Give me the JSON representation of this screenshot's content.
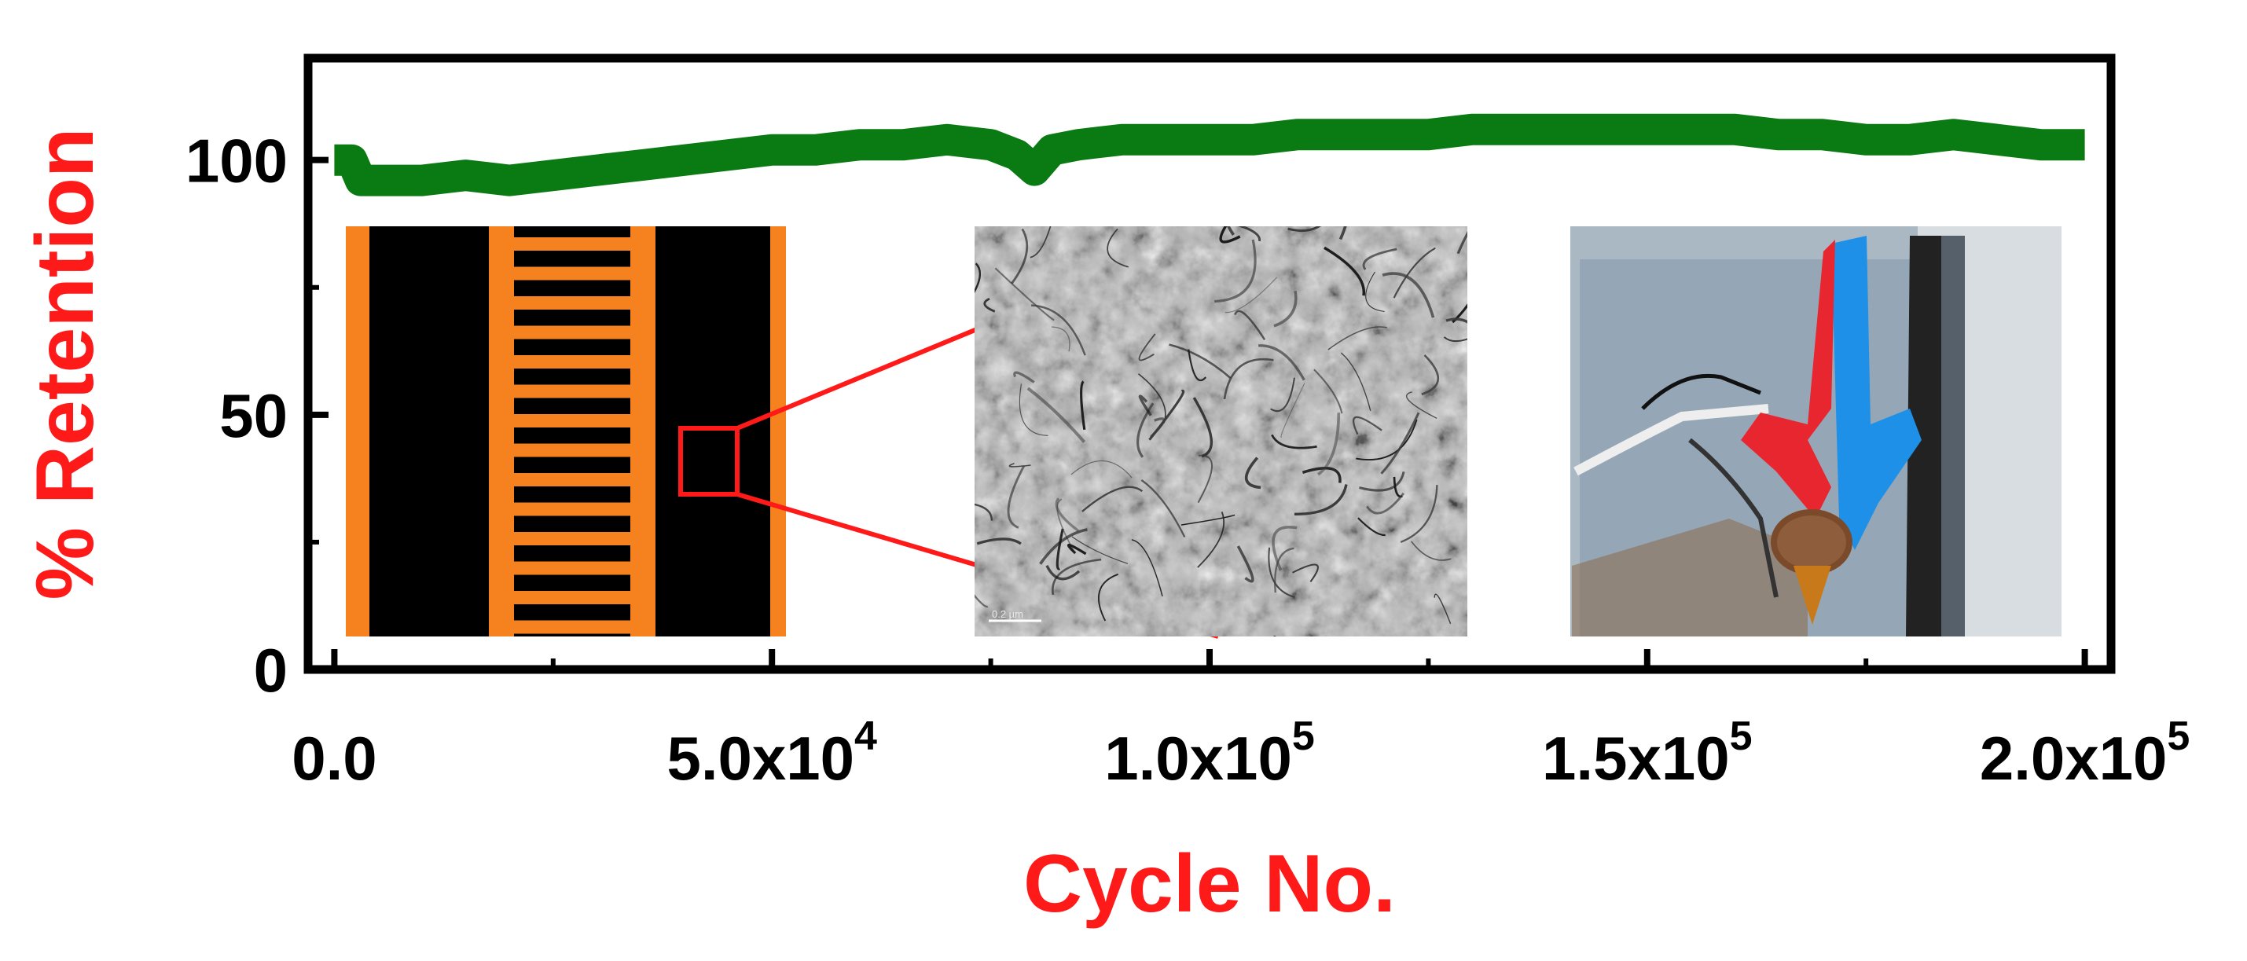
{
  "colors": {
    "axis_title": "#ff1a1a",
    "series": "#0a7a12",
    "frame": "#000000",
    "electrode": "#f5821f",
    "substrate": "#000000",
    "zoom_lines": "#ff1a1a",
    "micrograph_bg": "#b8b8b8",
    "photo_bg": "#aab8c4"
  },
  "chart_data": {
    "type": "line",
    "xlabel": "Cycle No.",
    "ylabel": "% Retention",
    "xlim": [
      -3000,
      203000
    ],
    "ylim": [
      0,
      120
    ],
    "x_ticks": [
      {
        "value": 0,
        "label": "0.0",
        "exp": ""
      },
      {
        "value": 50000,
        "label": "5.0x10",
        "exp": "4"
      },
      {
        "value": 100000,
        "label": "1.0x10",
        "exp": "5"
      },
      {
        "value": 150000,
        "label": "1.5x10",
        "exp": "5"
      },
      {
        "value": 200000,
        "label": "2.0x10",
        "exp": "5"
      }
    ],
    "y_ticks": [
      {
        "value": 0,
        "label": "0"
      },
      {
        "value": 50,
        "label": "50"
      },
      {
        "value": 100,
        "label": "100"
      }
    ],
    "grid": false,
    "series": [
      {
        "x": [
          0,
          2000,
          3000,
          5000,
          10000,
          15000,
          20000,
          25000,
          30000,
          35000,
          40000,
          45000,
          50000,
          55000,
          60000,
          65000,
          70000,
          75000,
          78000,
          80000,
          82000,
          85000,
          90000,
          95000,
          100000,
          105000,
          110000,
          115000,
          120000,
          125000,
          130000,
          135000,
          140000,
          145000,
          150000,
          155000,
          160000,
          165000,
          170000,
          175000,
          180000,
          185000,
          190000,
          195000,
          200000
        ],
        "values": [
          100,
          100,
          96,
          96,
          96,
          97,
          96,
          97,
          98,
          99,
          100,
          101,
          102,
          102,
          103,
          103,
          104,
          103,
          101,
          98,
          102,
          103,
          104,
          104,
          104,
          104,
          105,
          105,
          105,
          105,
          106,
          106,
          106,
          106,
          106,
          106,
          106,
          105,
          105,
          104,
          104,
          105,
          104,
          103,
          103
        ]
      }
    ]
  },
  "insets": {
    "micrograph_scale_label": "0.2 µm"
  }
}
